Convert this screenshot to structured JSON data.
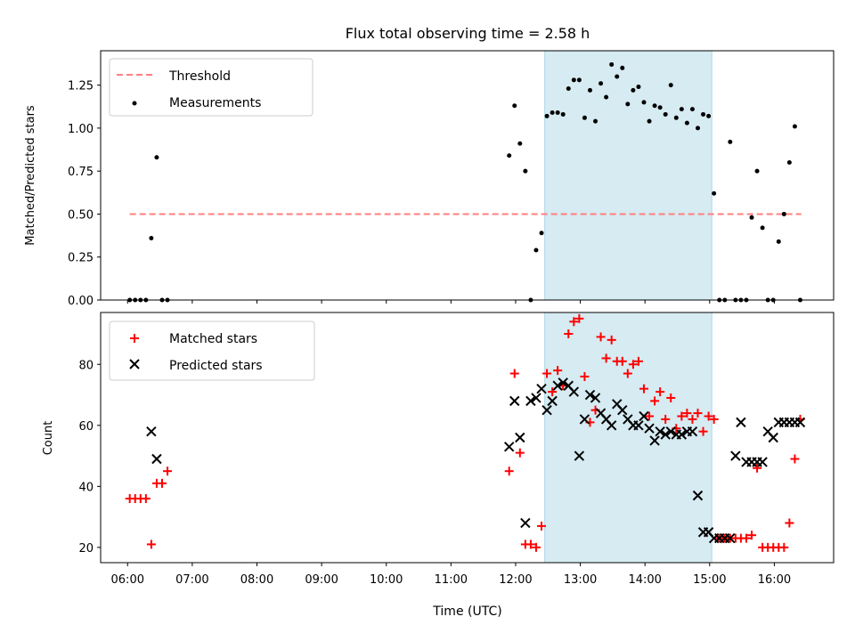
{
  "chart_data": [
    {
      "type": "scatter",
      "title": "Flux total observing time = 2.58 h",
      "ylabel": "Matched/Predicted stars",
      "xlim": [
        "05:35",
        "16:55"
      ],
      "ylim": [
        0,
        1.45
      ],
      "yticks": [
        "0.00",
        "0.25",
        "0.50",
        "0.75",
        "1.00",
        "1.25"
      ],
      "shaded_interval": [
        "12:27",
        "15:02"
      ],
      "legend_position": "upper-left",
      "grid": false,
      "series": [
        {
          "name": "Threshold",
          "style": "dashed-line",
          "color": "#ff7f7f",
          "x": [
            "06:02",
            "16:25"
          ],
          "y": [
            0.5,
            0.5
          ]
        },
        {
          "name": "Measurements",
          "style": "point",
          "color": "#000000",
          "x": [
            "06:02",
            "06:07",
            "06:12",
            "06:17",
            "06:22",
            "06:27",
            "06:32",
            "06:37",
            "11:54",
            "11:59",
            "12:04",
            "12:09",
            "12:14",
            "12:19",
            "12:24",
            "12:29",
            "12:34",
            "12:39",
            "12:44",
            "12:49",
            "12:54",
            "12:59",
            "13:04",
            "13:09",
            "13:14",
            "13:19",
            "13:24",
            "13:29",
            "13:34",
            "13:39",
            "13:44",
            "13:49",
            "13:54",
            "13:59",
            "14:04",
            "14:09",
            "14:14",
            "14:19",
            "14:24",
            "14:29",
            "14:34",
            "14:39",
            "14:44",
            "14:49",
            "14:54",
            "14:59",
            "15:04",
            "15:09",
            "15:14",
            "15:19",
            "15:24",
            "15:29",
            "15:34",
            "15:39",
            "15:44",
            "15:49",
            "15:54",
            "15:59",
            "16:04",
            "16:09",
            "16:14",
            "16:19",
            "16:24"
          ],
          "y": [
            0,
            0,
            0,
            0,
            0.36,
            0.83,
            0,
            0,
            0.84,
            1.13,
            0.91,
            0.75,
            0,
            0.29,
            0.39,
            1.07,
            1.09,
            1.09,
            1.08,
            1.23,
            1.28,
            1.28,
            1.06,
            1.22,
            1.04,
            1.26,
            1.18,
            1.37,
            1.3,
            1.35,
            1.14,
            1.22,
            1.24,
            1.15,
            1.04,
            1.13,
            1.12,
            1.08,
            1.25,
            1.06,
            1.11,
            1.03,
            1.11,
            1.0,
            1.08,
            1.07,
            0.62,
            0,
            0,
            0.92,
            0,
            0,
            0,
            0.48,
            0.75,
            0.42,
            0,
            0,
            0.34,
            0.5,
            0.8,
            1.01,
            0
          ]
        }
      ]
    },
    {
      "type": "scatter",
      "xlabel": "Time (UTC)",
      "ylabel": "Count",
      "xlim": [
        "05:35",
        "16:55"
      ],
      "ylim": [
        15,
        97
      ],
      "yticks": [
        "20",
        "40",
        "60",
        "80"
      ],
      "xticks": [
        "06:00",
        "07:00",
        "08:00",
        "09:00",
        "10:00",
        "11:00",
        "12:00",
        "13:00",
        "14:00",
        "15:00",
        "16:00"
      ],
      "shaded_interval": [
        "12:27",
        "15:02"
      ],
      "legend_position": "upper-left",
      "grid": false,
      "series": [
        {
          "name": "Matched stars",
          "style": "plus",
          "color": "#ff0000",
          "x": [
            "06:02",
            "06:07",
            "06:12",
            "06:17",
            "06:22",
            "06:27",
            "06:32",
            "06:37",
            "11:54",
            "11:59",
            "12:04",
            "12:09",
            "12:14",
            "12:19",
            "12:24",
            "12:29",
            "12:34",
            "12:39",
            "12:44",
            "12:49",
            "12:54",
            "12:59",
            "13:04",
            "13:09",
            "13:14",
            "13:19",
            "13:24",
            "13:29",
            "13:34",
            "13:39",
            "13:44",
            "13:49",
            "13:54",
            "13:59",
            "14:04",
            "14:09",
            "14:14",
            "14:19",
            "14:24",
            "14:29",
            "14:34",
            "14:39",
            "14:44",
            "14:49",
            "14:54",
            "14:59",
            "15:04",
            "15:09",
            "15:14",
            "15:19",
            "15:24",
            "15:29",
            "15:34",
            "15:39",
            "15:44",
            "15:49",
            "15:54",
            "15:59",
            "16:04",
            "16:09",
            "16:14",
            "16:19",
            "16:24"
          ],
          "y": [
            36,
            36,
            36,
            36,
            21,
            41,
            41,
            45,
            45,
            77,
            51,
            21,
            21,
            20,
            27,
            77,
            71,
            78,
            73,
            90,
            94,
            95,
            76,
            61,
            65,
            89,
            82,
            88,
            81,
            81,
            77,
            80,
            81,
            72,
            63,
            68,
            71,
            62,
            69,
            59,
            63,
            64,
            62,
            64,
            58,
            63,
            62,
            23,
            23,
            23,
            23,
            23,
            23,
            24,
            46,
            20,
            20,
            20,
            20,
            20,
            28,
            49,
            62
          ]
        },
        {
          "name": "Predicted stars",
          "style": "x",
          "color": "#000000",
          "x": [
            "06:22",
            "06:27",
            "11:54",
            "11:59",
            "12:04",
            "12:09",
            "12:14",
            "12:19",
            "12:24",
            "12:29",
            "12:34",
            "12:39",
            "12:44",
            "12:49",
            "12:54",
            "12:59",
            "13:04",
            "13:09",
            "13:14",
            "13:19",
            "13:24",
            "13:29",
            "13:34",
            "13:39",
            "13:44",
            "13:49",
            "13:54",
            "13:59",
            "14:04",
            "14:09",
            "14:14",
            "14:19",
            "14:24",
            "14:29",
            "14:34",
            "14:39",
            "14:44",
            "14:49",
            "14:54",
            "14:59",
            "15:04",
            "15:09",
            "15:14",
            "15:19",
            "15:24",
            "15:29",
            "15:34",
            "15:39",
            "15:44",
            "15:49",
            "15:54",
            "15:59",
            "16:04",
            "16:09",
            "16:14",
            "16:19",
            "16:24"
          ],
          "y": [
            58,
            49,
            53,
            68,
            56,
            28,
            68,
            69,
            72,
            65,
            68,
            73,
            74,
            73,
            71,
            50,
            62,
            70,
            69,
            64,
            62,
            60,
            67,
            65,
            62,
            60,
            60,
            63,
            59,
            55,
            58,
            57,
            58,
            57,
            57,
            58,
            58,
            37,
            25,
            25,
            23,
            23,
            23,
            23,
            50,
            61,
            48,
            48,
            48,
            48,
            58,
            56,
            61,
            61,
            61,
            61,
            61
          ]
        }
      ]
    }
  ]
}
